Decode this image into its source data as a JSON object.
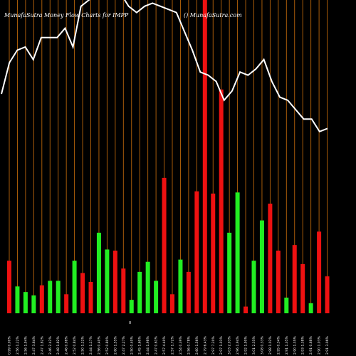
{
  "chart_data": {
    "type": "bar",
    "title_left": "MunafaSutra  Money Flow  Charts for IMPP",
    "title_right": "() MunafaSutra.com",
    "zero_label": "0",
    "colors": {
      "background": "#000000",
      "grid": "#b8640a",
      "up": "#22ee22",
      "down": "#ee1111",
      "price_line": "#ffffff"
    },
    "bars": [
      {
        "label": "0.99 0.00%",
        "value": 47,
        "color": "down"
      },
      {
        "label": "2.56 1.22%",
        "value": 24,
        "color": "up"
      },
      {
        "label": "2.56 1.94%",
        "value": 19,
        "color": "up"
      },
      {
        "label": "2.47 3.64%",
        "value": 16,
        "color": "up"
      },
      {
        "label": "2.47 1.82%",
        "value": 25,
        "color": "down"
      },
      {
        "label": "2.46 2.42%",
        "value": 29,
        "color": "up"
      },
      {
        "label": "2.48 1.82%",
        "value": 29,
        "color": "up"
      },
      {
        "label": "2.46 0.98%",
        "value": 17,
        "color": "down"
      },
      {
        "label": "2.52 0.84%",
        "value": 47,
        "color": "up"
      },
      {
        "label": "2.50 1.22%",
        "value": 36,
        "color": "down"
      },
      {
        "label": "2.44 1.17%",
        "value": 28,
        "color": "down"
      },
      {
        "label": "2.56 0.40%",
        "value": 72,
        "color": "up"
      },
      {
        "label": "2.52 0.80%",
        "value": 57,
        "color": "up"
      },
      {
        "label": "2.60 1.55%",
        "value": 56,
        "color": "down"
      },
      {
        "label": "2.47 2.27%",
        "value": 40,
        "color": "down"
      },
      {
        "label": "2.50 0.40%",
        "value": 12,
        "color": "up"
      },
      {
        "label": "2.45 1.60%",
        "value": 37,
        "color": "up"
      },
      {
        "label": "2.44 1.98%",
        "value": 46,
        "color": "up"
      },
      {
        "label": "2.47 0.61%",
        "value": 29,
        "color": "up"
      },
      {
        "label": "2.57 4.40%",
        "value": 121,
        "color": "down"
      },
      {
        "label": "2.57 1.72%",
        "value": 17,
        "color": "down"
      },
      {
        "label": "2.54 0.39%",
        "value": 48,
        "color": "up"
      },
      {
        "label": "2.56 0.78%",
        "value": 37,
        "color": "down"
      },
      {
        "label": "2.60 1.56%",
        "value": 109,
        "color": "down"
      },
      {
        "label": "2.79 6.43%",
        "value": 280,
        "color": "down"
      },
      {
        "label": "2.97 7.20%",
        "value": 107,
        "color": "down"
      },
      {
        "label": "2.97 1.01%",
        "value": 200,
        "color": "down"
      },
      {
        "label": "3.03 2.03%",
        "value": 72,
        "color": "up"
      },
      {
        "label": "2.96 1.94%",
        "value": 108,
        "color": "up"
      },
      {
        "label": "2.92 1.90%",
        "value": 6,
        "color": "down"
      },
      {
        "label": "3.01 2.35%",
        "value": 47,
        "color": "up"
      },
      {
        "label": "3.08 0.33%",
        "value": 83,
        "color": "up"
      },
      {
        "label": "2.98 1.02%",
        "value": 98,
        "color": "down"
      },
      {
        "label": "2.95 0.34%",
        "value": 56,
        "color": "down"
      },
      {
        "label": "2.91 1.35%",
        "value": 14,
        "color": "up"
      },
      {
        "label": "2.90 1.35%",
        "value": 61,
        "color": "down"
      },
      {
        "label": "2.93 1.38%",
        "value": 44,
        "color": "down"
      },
      {
        "label": "2.91 0.68%",
        "value": 9,
        "color": "up"
      },
      {
        "label": "2.90 1.03%",
        "value": 73,
        "color": "down"
      },
      {
        "label": "2.91 3.06%",
        "value": 33,
        "color": "down"
      }
    ],
    "price_line": [
      2.2,
      2.3,
      2.34,
      2.35,
      2.31,
      2.38,
      2.38,
      2.38,
      2.41,
      2.35,
      2.48,
      2.5,
      2.52,
      2.54,
      2.52,
      2.52,
      2.48,
      2.46,
      2.48,
      2.49,
      2.48,
      2.47,
      2.46,
      2.4,
      2.34,
      2.27,
      2.26,
      2.24,
      2.18,
      2.21,
      2.27,
      2.26,
      2.28,
      2.31,
      2.24,
      2.19,
      2.18,
      2.15,
      2.12,
      2.12,
      2.08,
      2.09
    ]
  }
}
